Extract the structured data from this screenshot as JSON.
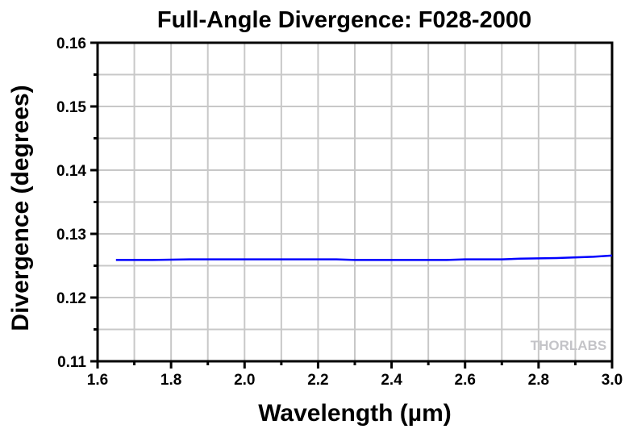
{
  "chart_data": {
    "type": "line",
    "title": "Full-Angle Divergence: F028-2000",
    "xlabel": "Wavelength (µm)",
    "ylabel": "Divergence (degrees)",
    "xlim": [
      1.6,
      3.0
    ],
    "ylim": [
      0.11,
      0.16
    ],
    "xticks": [
      "1.6",
      "1.8",
      "2.0",
      "2.2",
      "2.4",
      "2.6",
      "2.8",
      "3.0"
    ],
    "yticks": [
      "0.11",
      "0.12",
      "0.13",
      "0.14",
      "0.15",
      "0.16"
    ],
    "grid": true,
    "series": [
      {
        "name": "Divergence",
        "color": "#0000ff",
        "x": [
          1.65,
          1.75,
          1.85,
          2.0,
          2.15,
          2.25,
          2.3,
          2.45,
          2.55,
          2.6,
          2.7,
          2.75,
          2.85,
          2.95,
          3.0
        ],
        "y": [
          0.1259,
          0.1259,
          0.126,
          0.126,
          0.126,
          0.126,
          0.1259,
          0.1259,
          0.1259,
          0.126,
          0.126,
          0.1261,
          0.1262,
          0.1264,
          0.1266
        ]
      }
    ],
    "watermark": "THORLABS"
  }
}
